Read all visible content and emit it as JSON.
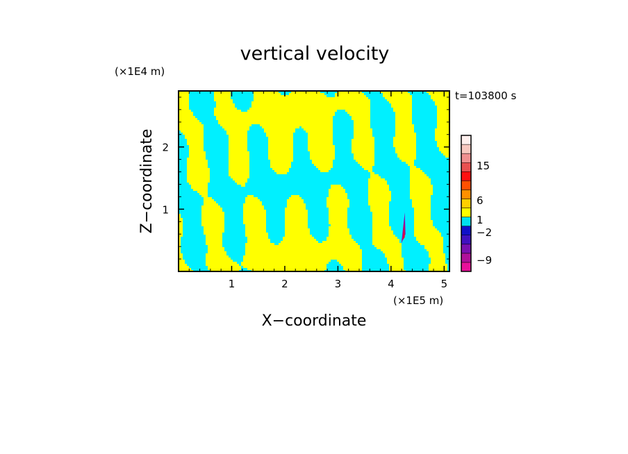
{
  "chart_data": {
    "type": "heatmap",
    "title": "vertical velocity",
    "xlabel": "X−coordinate",
    "ylabel": "Z−coordinate",
    "x_unit": "(×1E5 m)",
    "y_unit": "(×1E4 m)",
    "time_label": "t=103800 s",
    "xlim": [
      0,
      5.1
    ],
    "ylim": [
      0,
      2.9
    ],
    "x_ticks": [
      1,
      2,
      3,
      4,
      5
    ],
    "y_ticks": [
      1,
      2
    ],
    "colorbar": {
      "levels": [
        -9,
        -2,
        1,
        6,
        15
      ],
      "label_values": [
        "15",
        "6",
        "1",
        "−2",
        "−9"
      ],
      "colors": [
        "#e8109a",
        "#b0109a",
        "#7a10b0",
        "#4010c0",
        "#1010c8",
        "#00e0f0",
        "#ffff00",
        "#ffd000",
        "#ff9000",
        "#ff5000",
        "#ff1010",
        "#e85050",
        "#f09090",
        "#f8c8c0",
        "#fff0ee"
      ]
    },
    "field_colors": {
      "negative": "#00f0ff",
      "positive": "#ffff00"
    }
  }
}
